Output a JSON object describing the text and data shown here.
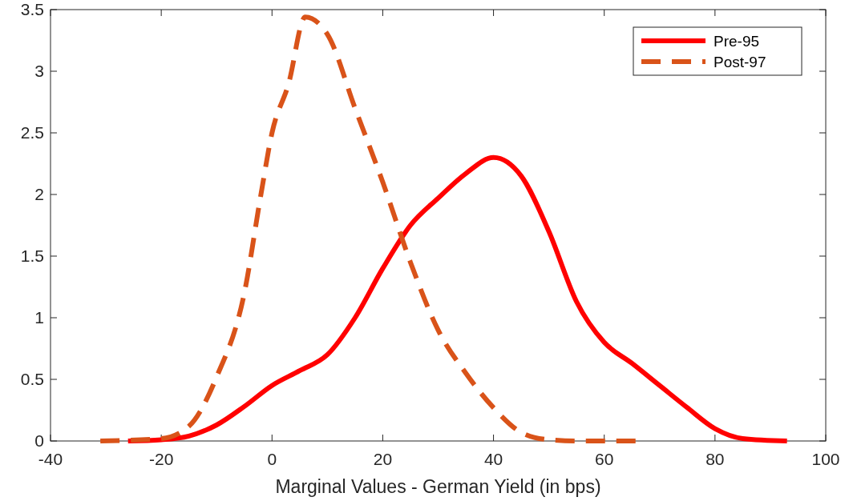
{
  "chart_data": {
    "type": "line",
    "xlabel": "Marginal Values - German Yield (in bps)",
    "xlim": [
      -40,
      100
    ],
    "xticks": [
      -40,
      -20,
      0,
      20,
      40,
      60,
      80,
      100
    ],
    "ylim": [
      0,
      3.5
    ],
    "yticks": [
      0,
      0.5,
      1,
      1.5,
      2,
      2.5,
      3,
      3.5
    ],
    "grid": false,
    "legend": "top right",
    "series": [
      {
        "name": "Pre-95",
        "color": "#ff0000",
        "line_style": "solid",
        "x": [
          -26,
          -20,
          -15,
          -10,
          -5,
          0,
          5,
          10,
          15,
          20,
          25,
          30,
          35,
          40,
          45,
          50,
          55,
          60,
          65,
          70,
          75,
          80,
          85,
          93
        ],
        "values": [
          0,
          0.01,
          0.04,
          0.13,
          0.28,
          0.45,
          0.57,
          0.7,
          1.0,
          1.4,
          1.75,
          1.97,
          2.17,
          2.3,
          2.15,
          1.7,
          1.13,
          0.8,
          0.63,
          0.45,
          0.27,
          0.1,
          0.02,
          0
        ]
      },
      {
        "name": "Post-97",
        "color": "#d95319",
        "line_style": "dashed",
        "x": [
          -31,
          -20,
          -15,
          -10,
          -5,
          -2,
          0,
          3,
          6,
          10,
          15,
          20,
          25,
          30,
          35,
          40,
          45,
          50,
          55,
          67
        ],
        "values": [
          0,
          0.02,
          0.12,
          0.52,
          1.2,
          2.0,
          2.5,
          2.9,
          3.44,
          3.3,
          2.7,
          2.1,
          1.45,
          0.9,
          0.55,
          0.27,
          0.07,
          0.01,
          0,
          0
        ]
      }
    ]
  }
}
